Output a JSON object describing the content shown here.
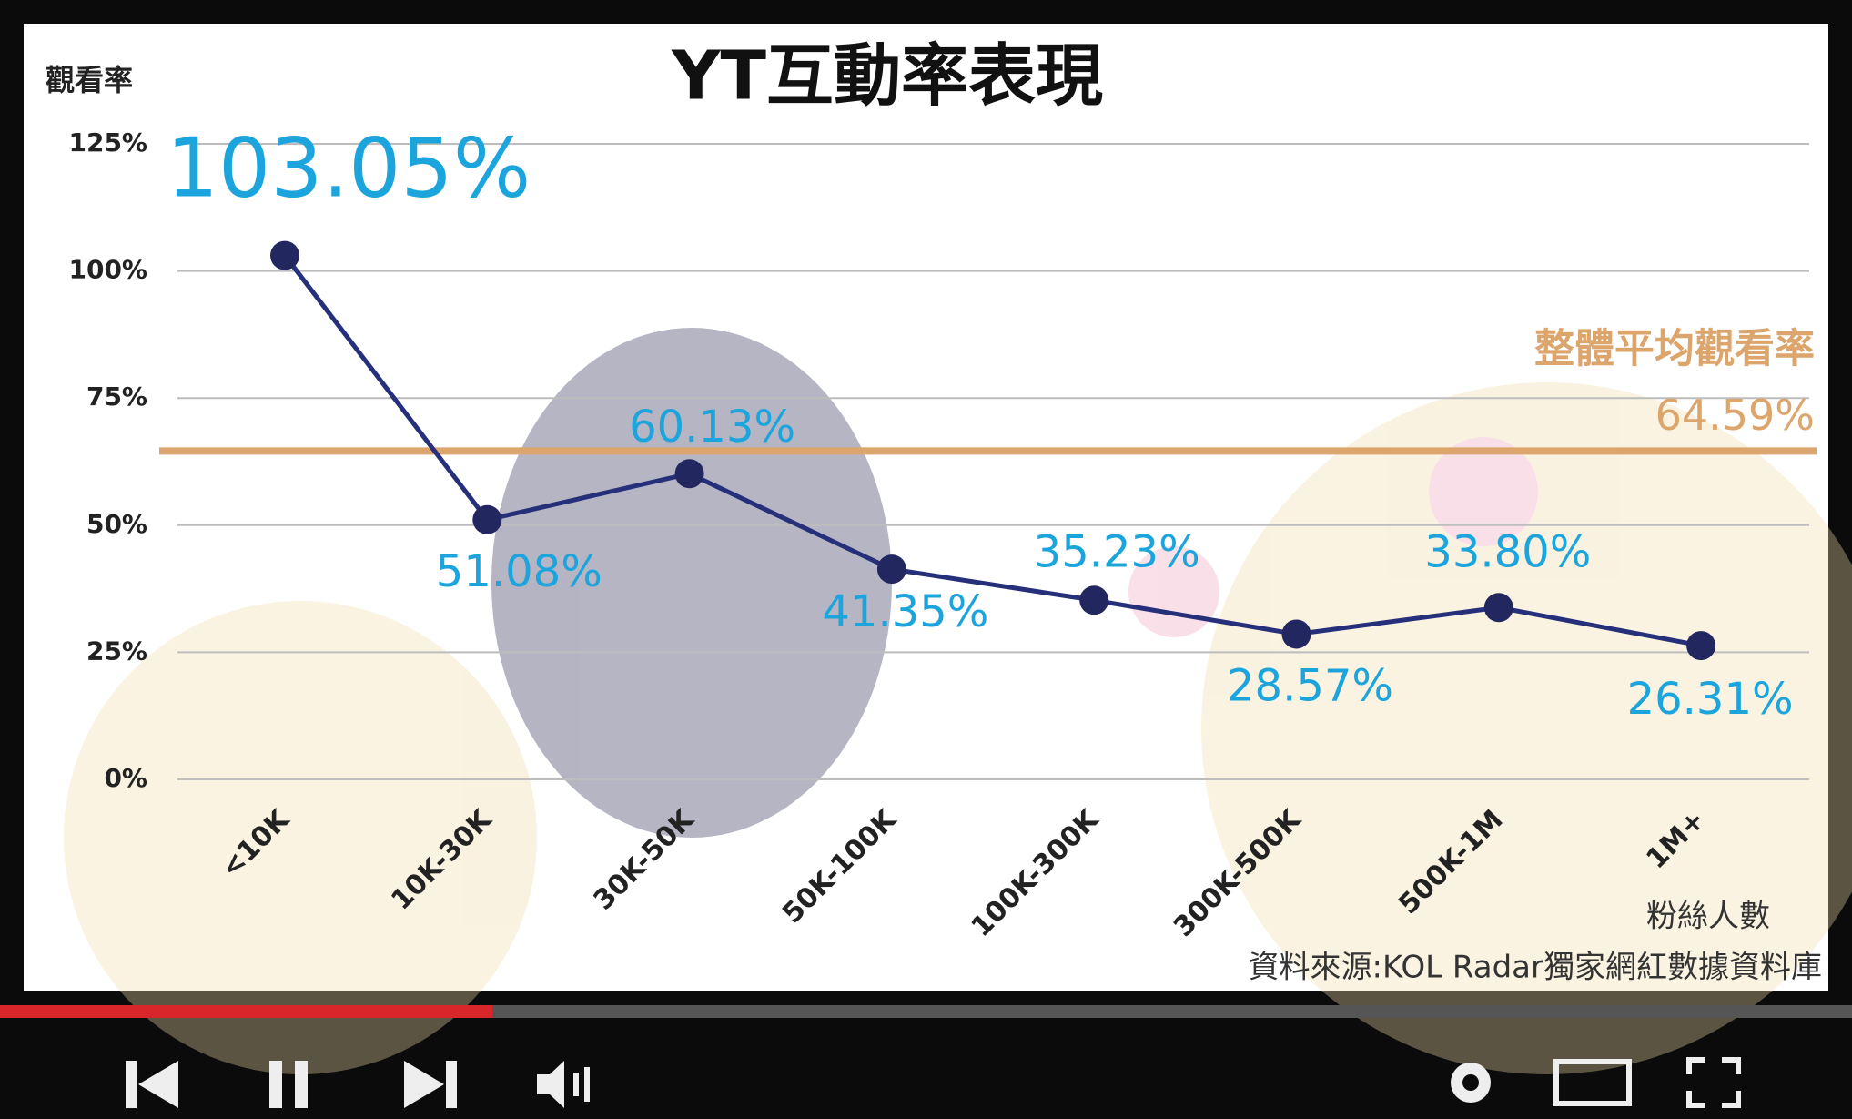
{
  "chart_data": {
    "type": "line",
    "title": "YT互動率表現",
    "y_label": "觀看率",
    "x_label": "粉絲人數",
    "source": "資料來源:KOL Radar獨家網紅數據資料庫",
    "categories": [
      "<10K",
      "10K-30K",
      "30K-50K",
      "50K-100K",
      "100K-300K",
      "300K-500K",
      "500K-1M",
      "1M+"
    ],
    "series": [
      {
        "color": "#26307a",
        "values": [
          103.05,
          51.08,
          60.13,
          41.35,
          35.23,
          28.57,
          33.8,
          26.31
        ],
        "value_labels": [
          "103.05%",
          "51.08%",
          "60.13%",
          "41.35%",
          "35.23%",
          "28.57%",
          "33.80%",
          "26.31%"
        ]
      }
    ],
    "reference_line": {
      "label": "整體平均觀看率",
      "value": 64.59,
      "value_label": "64.59%",
      "color": "#dba56c"
    },
    "ylim": [
      0,
      125
    ],
    "yticks": [
      {
        "value": 0,
        "label": "0%"
      },
      {
        "value": 25,
        "label": "25%"
      },
      {
        "value": 50,
        "label": "50%"
      },
      {
        "value": 75,
        "label": "75%"
      },
      {
        "value": 100,
        "label": "100%"
      },
      {
        "value": 125,
        "label": "125%"
      }
    ],
    "grid": true
  }
}
